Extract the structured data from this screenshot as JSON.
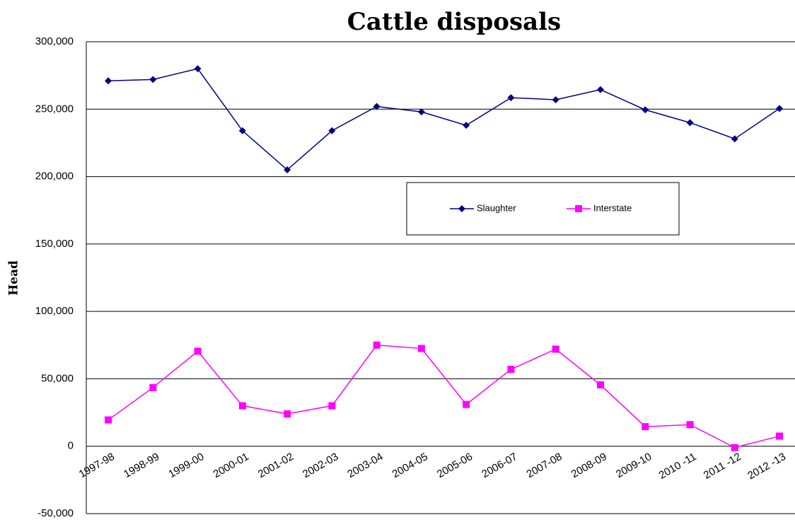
{
  "chart_data": {
    "type": "line",
    "title": "Cattle disposals",
    "y_label": "Head",
    "categories": [
      "1997-98",
      "1998-99",
      "1999-00",
      "2000-01",
      "2001-02",
      "2002-03",
      "2003-04",
      "2004-05",
      "2005-06",
      "2006-07",
      "2007-08",
      "2008-09",
      "2009-10",
      "2010 -11",
      "2011 -12",
      "2012 -13"
    ],
    "series": [
      {
        "name": "Slaughter",
        "color": "#000080",
        "marker": "diamond",
        "values": [
          271000,
          272000,
          280000,
          234000,
          205000,
          234000,
          252000,
          248000,
          238000,
          258500,
          257000,
          264500,
          249500,
          240000,
          228000,
          250500
        ]
      },
      {
        "name": "Interstate",
        "color": "#ff00ff",
        "marker": "square",
        "values": [
          19500,
          43500,
          70500,
          30000,
          24000,
          30000,
          75000,
          72500,
          31000,
          57000,
          72000,
          45500,
          14500,
          16000,
          -1000,
          7500
        ]
      }
    ],
    "ylim": [
      -50000,
      300000
    ],
    "yticks": [
      {
        "value": -50000,
        "label": "-50,000"
      },
      0,
      {
        "value": 50000,
        "label": "50,000"
      },
      {
        "value": 100000,
        "label": "100,000"
      },
      {
        "value": 150000,
        "label": "150,000"
      },
      {
        "value": 200000,
        "label": "200,000"
      },
      {
        "value": 250000,
        "label": "250,000"
      },
      {
        "value": 300000,
        "label": "300,000"
      }
    ],
    "grid": true
  }
}
